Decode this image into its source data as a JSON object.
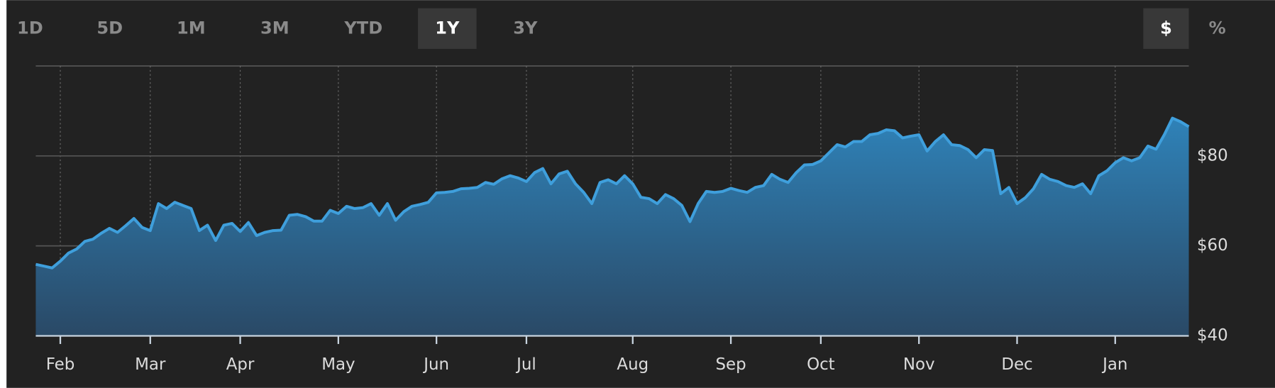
{
  "range_buttons": [
    "1D",
    "5D",
    "1M",
    "3M",
    "YTD",
    "1Y",
    "3Y"
  ],
  "selected_range": 5,
  "unit_buttons": [
    "$",
    "%"
  ],
  "selected_unit": 0,
  "chart_data": {
    "type": "area",
    "color": "#3f9fdc",
    "grid": true,
    "ylim": [
      40,
      100
    ],
    "yticks": [
      {
        "value": 40,
        "label": "$40"
      },
      {
        "value": 60,
        "label": "$60"
      },
      {
        "value": 80,
        "label": "$80"
      }
    ],
    "categories": [
      null,
      null,
      null,
      "Feb",
      null,
      null,
      null,
      null,
      null,
      null,
      null,
      null,
      null,
      null,
      "Mar",
      null,
      null,
      null,
      null,
      null,
      null,
      null,
      null,
      null,
      null,
      "Apr",
      null,
      null,
      null,
      null,
      null,
      null,
      null,
      null,
      null,
      null,
      null,
      "May",
      null,
      null,
      null,
      null,
      null,
      null,
      null,
      null,
      null,
      null,
      null,
      "Jun",
      null,
      null,
      null,
      null,
      null,
      null,
      null,
      null,
      null,
      null,
      "Jul",
      null,
      null,
      null,
      null,
      null,
      null,
      null,
      null,
      null,
      null,
      null,
      null,
      "Aug",
      null,
      null,
      null,
      null,
      null,
      null,
      null,
      null,
      null,
      null,
      null,
      "Sep",
      null,
      null,
      null,
      null,
      null,
      null,
      null,
      null,
      null,
      null,
      "Oct",
      null,
      null,
      null,
      null,
      null,
      null,
      null,
      null,
      null,
      null,
      null,
      "Nov",
      null,
      null,
      null,
      null,
      null,
      null,
      null,
      null,
      null,
      null,
      null,
      "Dec",
      null,
      null,
      null,
      null,
      null,
      null,
      null,
      null,
      null,
      null,
      null,
      "Jan",
      null,
      null,
      null,
      null,
      null,
      null,
      null,
      null,
      null
    ],
    "values": [
      55.9,
      55.5,
      55.1,
      56.6,
      58.4,
      59.3,
      61,
      61.5,
      62.8,
      63.9,
      63,
      64.5,
      66.1,
      64.1,
      63.4,
      69.4,
      68.3,
      69.7,
      69,
      68.3,
      63.4,
      64.6,
      61.2,
      64.6,
      65,
      63.2,
      65.2,
      62.3,
      63,
      63.4,
      63.5,
      66.8,
      67,
      66.5,
      65.5,
      65.5,
      67.9,
      67.2,
      68.8,
      68.3,
      68.5,
      69.4,
      66.8,
      69.4,
      65.7,
      67.6,
      68.8,
      69.2,
      69.7,
      71.8,
      71.9,
      72.1,
      72.7,
      72.8,
      73,
      74.1,
      73.7,
      74.9,
      75.6,
      75.1,
      74.3,
      76.3,
      77.2,
      73.8,
      76,
      76.6,
      73.8,
      71.9,
      69.4,
      74.1,
      74.7,
      73.8,
      75.6,
      73.8,
      70.8,
      70.5,
      69.4,
      71.4,
      70.5,
      69,
      65.4,
      69.4,
      72.1,
      71.9,
      72.1,
      72.8,
      72.3,
      71.9,
      73,
      73.4,
      75.9,
      74.8,
      74.1,
      76.3,
      78,
      78.1,
      78.9,
      80.7,
      82.5,
      82,
      83.2,
      83.2,
      84.7,
      85,
      85.8,
      85.6,
      84,
      84.4,
      84.7,
      81.1,
      83.2,
      84.7,
      82.5,
      82.3,
      81.4,
      79.6,
      81.4,
      81.2,
      71.6,
      73,
      69.4,
      70.7,
      72.7,
      75.9,
      74.8,
      74.3,
      73.4,
      73,
      73.8,
      71.6,
      75.6,
      76.7,
      78.5,
      79.6,
      78.9,
      79.6,
      82.2,
      81.5,
      84.7,
      88.4,
      87.6,
      86.5
    ]
  }
}
